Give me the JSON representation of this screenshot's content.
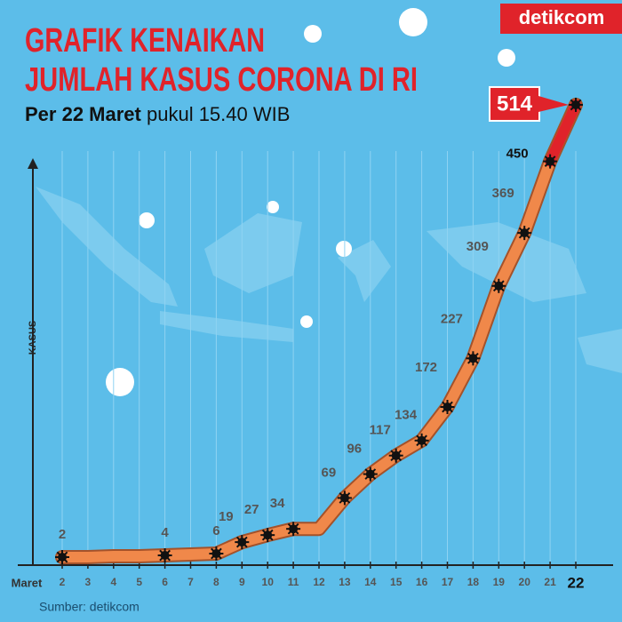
{
  "brand": "detikcom",
  "chart_data": {
    "type": "line",
    "title": [
      "GRAFIK KENAIKAN",
      "JUMLAH KASUS CORONA DI RI"
    ],
    "subtitle": {
      "bold": "Per 22 Maret",
      "rest": "pukul 15.40 WIB"
    },
    "x_label": "Maret",
    "y_label": "KASUS",
    "categories": [
      "2",
      "3",
      "4",
      "5",
      "6",
      "7",
      "8",
      "9",
      "10",
      "11",
      "12",
      "13",
      "14",
      "15",
      "16",
      "17",
      "18",
      "19",
      "20",
      "21",
      "22"
    ],
    "values": [
      2,
      2,
      3,
      3,
      4,
      5,
      6,
      19,
      27,
      34,
      34,
      69,
      96,
      117,
      134,
      172,
      227,
      309,
      369,
      450,
      514
    ],
    "value_labels": [
      "2",
      null,
      null,
      null,
      "4",
      null,
      "6",
      "19",
      "27",
      "34",
      null,
      "69",
      "96",
      "117",
      "134",
      "172",
      "227",
      "309",
      "369",
      "450",
      "514"
    ],
    "color": "#f0884a",
    "highlight_color": "#e0232a",
    "ylim": [
      0,
      520
    ],
    "source": "Sumber: detikcom"
  }
}
